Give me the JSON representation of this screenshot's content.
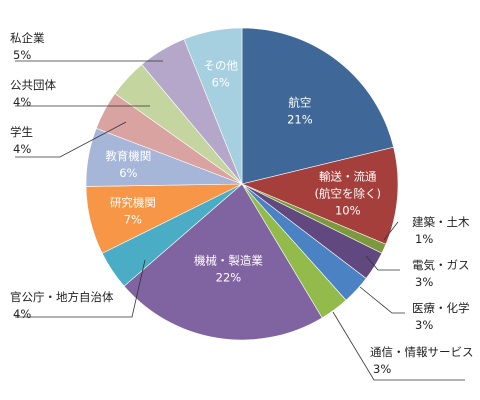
{
  "chart_data": {
    "type": "pie",
    "title": "",
    "start_angle_deg": 0,
    "direction": "clockwise",
    "slices": [
      {
        "label": "航空",
        "value": 21,
        "value_label": "21%",
        "color": "#3f6797"
      },
      {
        "label": "輸送・流通\n(航空を除く)",
        "value": 10,
        "value_label": "10%",
        "color": "#a53f3c"
      },
      {
        "label": "建築・土木",
        "value": 1,
        "value_label": "1%",
        "color": "#7c9a3d"
      },
      {
        "label": "電気・ガス",
        "value": 3,
        "value_label": "3%",
        "color": "#61497f"
      },
      {
        "label": "医療・化学",
        "value": 3,
        "value_label": "3%",
        "color": "#4a82c4"
      },
      {
        "label": "通信・情報サービス",
        "value": 3,
        "value_label": "3%",
        "color": "#93bb4b"
      },
      {
        "label": "機械・製造業",
        "value": 22,
        "value_label": "22%",
        "color": "#8064a2"
      },
      {
        "label": "官公庁・地方自治体",
        "value": 4,
        "value_label": "4%",
        "color": "#4bacc6"
      },
      {
        "label": "研究機関",
        "value": 7,
        "value_label": "7%",
        "color": "#f79646"
      },
      {
        "label": "教育機関",
        "value": 6,
        "value_label": "6%",
        "color": "#a5b6d9"
      },
      {
        "label": "学生",
        "value": 4,
        "value_label": "4%",
        "color": "#d9a3a2"
      },
      {
        "label": "公共団体",
        "value": 4,
        "value_label": "4%",
        "color": "#c4d59f"
      },
      {
        "label": "私企業",
        "value": 5,
        "value_label": "5%",
        "color": "#b4a7c9"
      },
      {
        "label": "その他",
        "value": 6,
        "value_label": "6%",
        "color": "#a6cfdf"
      }
    ]
  }
}
